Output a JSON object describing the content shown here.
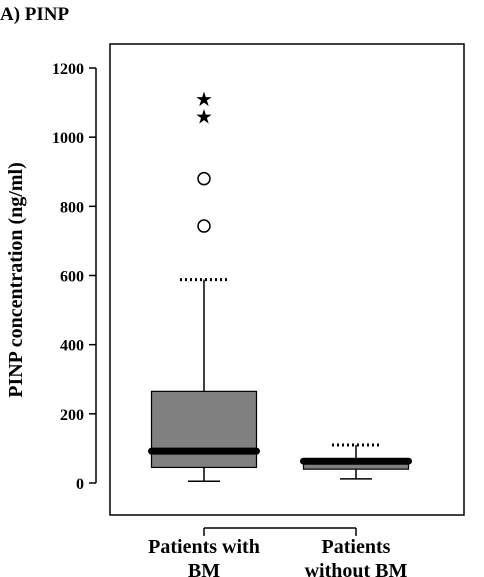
{
  "panel_title": "A) PINP",
  "chart_data": {
    "type": "boxplot",
    "ylabel": "PINP concentration (ng/ml)",
    "ylim": [
      -70,
      1300
    ],
    "yticks": [
      0,
      200,
      400,
      600,
      800,
      1000,
      1200
    ],
    "grid": false,
    "categories": [
      [
        "Patients with",
        "BM"
      ],
      [
        "Patients",
        "without BM"
      ]
    ],
    "series": [
      {
        "q1": 45,
        "median": 92,
        "q3": 265,
        "whisker_low": 5,
        "whisker_high": 588,
        "whisker_cap_high_style": "dotted",
        "outliers": [
          743,
          880
        ],
        "extremes": [
          1060,
          1110
        ]
      },
      {
        "q1": 40,
        "median": 63,
        "q3": 68,
        "whisker_low": 12,
        "whisker_high": 110,
        "whisker_cap_high_style": "dotted",
        "outliers": [],
        "extremes": []
      }
    ],
    "colors": {
      "box_fill": "#808080",
      "median": "#000000",
      "frame": "#000000"
    }
  }
}
